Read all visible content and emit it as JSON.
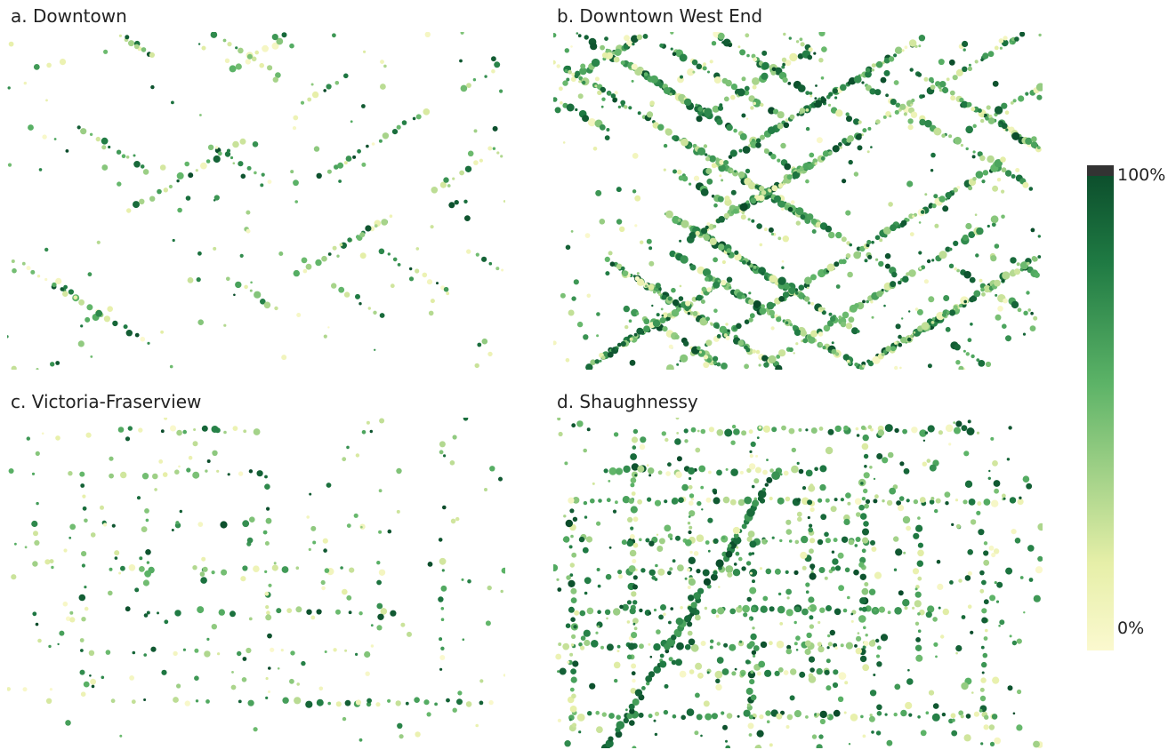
{
  "panels": [
    {
      "id": "a",
      "title": "a. Downtown",
      "pattern": "diagonal",
      "density": "sparse"
    },
    {
      "id": "b",
      "title": "b. Downtown West End",
      "pattern": "diagonal",
      "density": "dense"
    },
    {
      "id": "c",
      "title": "c. Victoria-Fraserview",
      "pattern": "grid",
      "density": "sparse"
    },
    {
      "id": "d",
      "title": "d. Shaughnessy",
      "pattern": "grid",
      "density": "dense"
    }
  ],
  "legend": {
    "max_label": "100%",
    "min_label": "0%",
    "color_low": "#fbf9cf",
    "color_mid": "#5cb367",
    "color_high": "#0a4a2a",
    "cap_color": "#333333"
  }
}
